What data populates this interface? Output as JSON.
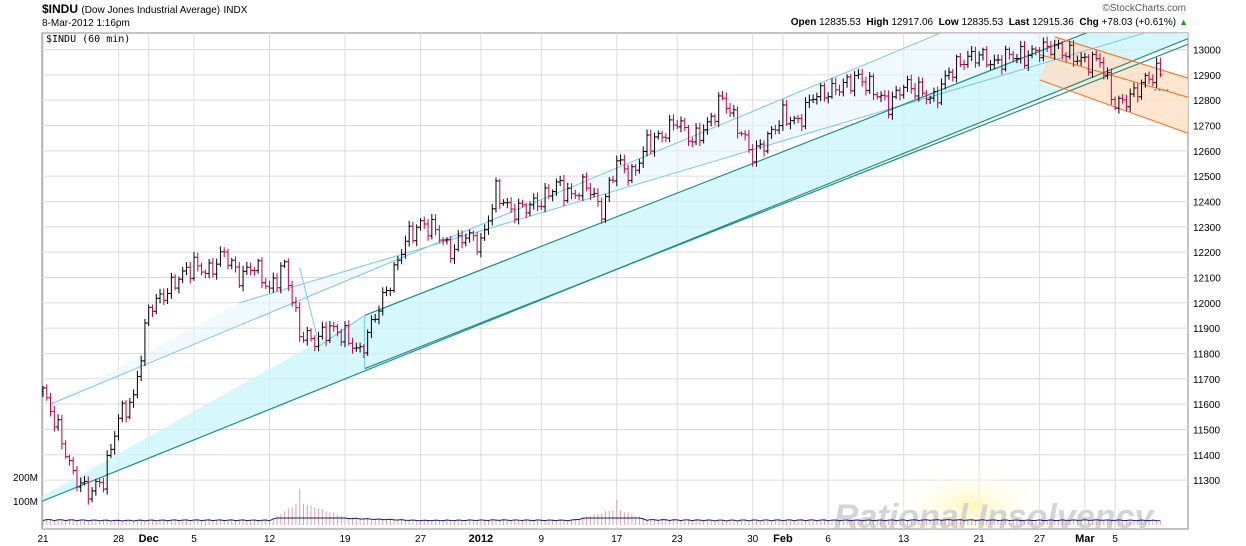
{
  "header": {
    "symbol": "$INDU",
    "description": "(Dow Jones Industrial Average)",
    "exchange": "INDX",
    "date": "8-Mar-2012 1:16pm",
    "brand": "©StockCharts.com",
    "open_label": "Open",
    "open": "12835.53",
    "high_label": "High",
    "high": "12917.06",
    "low_label": "Low",
    "low": "12835.53",
    "last_label": "Last",
    "last": "12915.36",
    "chg_label": "Chg",
    "chg": "+78.03 (+0.61%)"
  },
  "colors": {
    "up": "#000000",
    "down": "#c0004a",
    "channel_fill": "#c8f4fa",
    "channel_line": "#1f8f88",
    "outer_line": "#7fc4ee",
    "orange": "#f07c28",
    "orange_fill": "#fde0c8",
    "volume": "#d9a0b0",
    "volume_line": "#1a1a6a"
  },
  "watermark": "Rational Insolvency",
  "chart_data": {
    "type": "ohlc",
    "title": "$INDU (60 min)",
    "ylim": [
      11200,
      13100
    ],
    "y_ticks": [
      11300,
      11400,
      11500,
      11600,
      11700,
      11800,
      11900,
      12000,
      12100,
      12200,
      12300,
      12400,
      12500,
      12600,
      12700,
      12800,
      12900,
      13000
    ],
    "volume_ticks": [
      {
        "label": "200M",
        "value": 200
      },
      {
        "label": "100M",
        "value": 100
      }
    ],
    "x_ticks": [
      {
        "t": 0,
        "label": "21"
      },
      {
        "t": 5,
        "label": "28"
      },
      {
        "t": 7,
        "label": "Dec"
      },
      {
        "t": 10,
        "label": "5"
      },
      {
        "t": 15,
        "label": "12"
      },
      {
        "t": 20,
        "label": "19"
      },
      {
        "t": 25,
        "label": "27"
      },
      {
        "t": 29,
        "label": "2012"
      },
      {
        "t": 33,
        "label": "9"
      },
      {
        "t": 38,
        "label": "17"
      },
      {
        "t": 42,
        "label": "23"
      },
      {
        "t": 47,
        "label": "30"
      },
      {
        "t": 49,
        "label": "Feb"
      },
      {
        "t": 52,
        "label": "6"
      },
      {
        "t": 57,
        "label": "13"
      },
      {
        "t": 62,
        "label": "21"
      },
      {
        "t": 66,
        "label": "27"
      },
      {
        "t": 69,
        "label": "Mar"
      },
      {
        "t": 71,
        "label": "5"
      }
    ],
    "key_points": [
      {
        "t": 0,
        "c": 11650
      },
      {
        "t": 1,
        "c": 11500
      },
      {
        "t": 2,
        "c": 11320
      },
      {
        "t": 3,
        "c": 11250
      },
      {
        "t": 4,
        "c": 11300
      },
      {
        "t": 5,
        "c": 11550
      },
      {
        "t": 6,
        "c": 11620
      },
      {
        "t": 7,
        "c": 11980
      },
      {
        "t": 8,
        "c": 12030
      },
      {
        "t": 9,
        "c": 12100
      },
      {
        "t": 10,
        "c": 12150
      },
      {
        "t": 11,
        "c": 12120
      },
      {
        "t": 12,
        "c": 12200
      },
      {
        "t": 13,
        "c": 12100
      },
      {
        "t": 14,
        "c": 12150
      },
      {
        "t": 15,
        "c": 12050
      },
      {
        "t": 16,
        "c": 12150
      },
      {
        "t": 17,
        "c": 11880
      },
      {
        "t": 18,
        "c": 11850
      },
      {
        "t": 19,
        "c": 11900
      },
      {
        "t": 20,
        "c": 11870
      },
      {
        "t": 21,
        "c": 11800
      },
      {
        "t": 22,
        "c": 11950
      },
      {
        "t": 23,
        "c": 12080
      },
      {
        "t": 24,
        "c": 12250
      },
      {
        "t": 25,
        "c": 12310
      },
      {
        "t": 26,
        "c": 12290
      },
      {
        "t": 27,
        "c": 12200
      },
      {
        "t": 28,
        "c": 12270
      },
      {
        "t": 29,
        "c": 12230
      },
      {
        "t": 30,
        "c": 12440
      },
      {
        "t": 31,
        "c": 12360
      },
      {
        "t": 32,
        "c": 12380
      },
      {
        "t": 33,
        "c": 12400
      },
      {
        "t": 34,
        "c": 12470
      },
      {
        "t": 35,
        "c": 12420
      },
      {
        "t": 36,
        "c": 12470
      },
      {
        "t": 37,
        "c": 12360
      },
      {
        "t": 38,
        "c": 12560
      },
      {
        "t": 39,
        "c": 12500
      },
      {
        "t": 40,
        "c": 12630
      },
      {
        "t": 41,
        "c": 12660
      },
      {
        "t": 42,
        "c": 12720
      },
      {
        "t": 43,
        "c": 12640
      },
      {
        "t": 44,
        "c": 12700
      },
      {
        "t": 45,
        "c": 12810
      },
      {
        "t": 46,
        "c": 12700
      },
      {
        "t": 47,
        "c": 12580
      },
      {
        "t": 48,
        "c": 12650
      },
      {
        "t": 49,
        "c": 12740
      },
      {
        "t": 50,
        "c": 12710
      },
      {
        "t": 51,
        "c": 12820
      },
      {
        "t": 52,
        "c": 12830
      },
      {
        "t": 53,
        "c": 12860
      },
      {
        "t": 54,
        "c": 12890
      },
      {
        "t": 55,
        "c": 12840
      },
      {
        "t": 56,
        "c": 12780
      },
      {
        "t": 57,
        "c": 12860
      },
      {
        "t": 58,
        "c": 12840
      },
      {
        "t": 59,
        "c": 12800
      },
      {
        "t": 60,
        "c": 12910
      },
      {
        "t": 61,
        "c": 12960
      },
      {
        "t": 62,
        "c": 12980
      },
      {
        "t": 63,
        "c": 12940
      },
      {
        "t": 64,
        "c": 12980
      },
      {
        "t": 65,
        "c": 12970
      },
      {
        "t": 66,
        "c": 13000
      },
      {
        "t": 67,
        "c": 13010
      },
      {
        "t": 68,
        "c": 12980
      },
      {
        "t": 69,
        "c": 12950
      },
      {
        "t": 70,
        "c": 12960
      },
      {
        "t": 71,
        "c": 12780
      },
      {
        "t": 72,
        "c": 12810
      },
      {
        "t": 73,
        "c": 12880
      },
      {
        "t": 74,
        "c": 12915
      }
    ],
    "volume": [
      {
        "t": 0,
        "v": 25
      },
      {
        "t": 5,
        "v": 18
      },
      {
        "t": 10,
        "v": 22
      },
      {
        "t": 15,
        "v": 20
      },
      {
        "t": 17,
        "v": 130
      },
      {
        "t": 20,
        "v": 40
      },
      {
        "t": 25,
        "v": 18
      },
      {
        "t": 30,
        "v": 22
      },
      {
        "t": 35,
        "v": 20
      },
      {
        "t": 38,
        "v": 90
      },
      {
        "t": 40,
        "v": 25
      },
      {
        "t": 45,
        "v": 20
      },
      {
        "t": 50,
        "v": 22
      },
      {
        "t": 55,
        "v": 20
      },
      {
        "t": 60,
        "v": 24
      },
      {
        "t": 65,
        "v": 20
      },
      {
        "t": 70,
        "v": 22
      },
      {
        "t": 74,
        "v": 18
      }
    ],
    "channels": {
      "main_lower": [
        [
          -2,
          11170
        ],
        [
          89,
          13360
        ]
      ],
      "main_upper": [
        [
          21.3,
          11950
        ],
        [
          89,
          13530
        ]
      ],
      "outer_lower": [
        [
          13,
          12000
        ],
        [
          89,
          13350
        ]
      ],
      "outer_upper": [
        [
          0.5,
          11600
        ],
        [
          89,
          13800
        ]
      ],
      "second_lower": [
        [
          21.3,
          11740
        ],
        [
          89,
          13330
        ]
      ],
      "orange_upper": [
        [
          67,
          13050
        ],
        [
          80,
          12810
        ]
      ],
      "orange_mid": [
        [
          66,
          12980
        ],
        [
          80,
          12740
        ]
      ],
      "orange_lower": [
        [
          66,
          12880
        ],
        [
          80,
          12580
        ]
      ]
    }
  }
}
